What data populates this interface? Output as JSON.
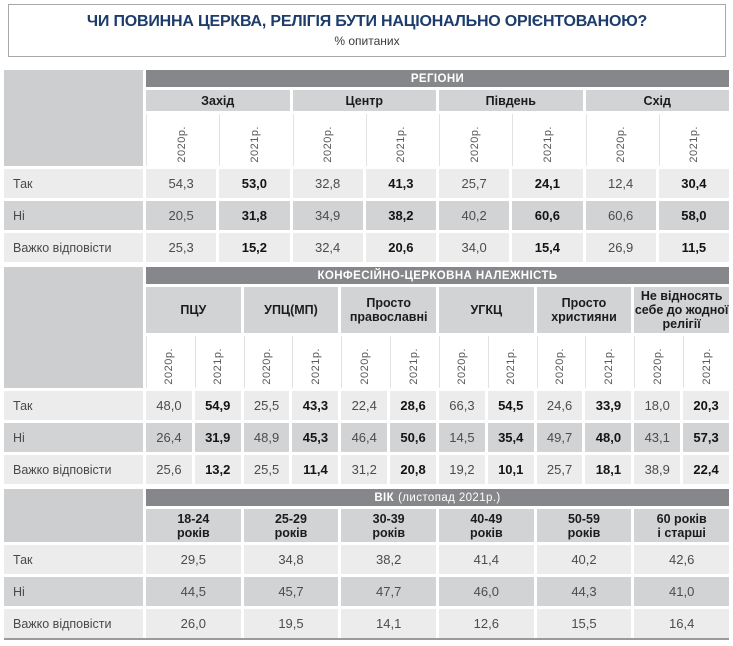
{
  "title": "ЧИ ПОВИННА ЦЕРКВА, РЕЛІГІЯ БУТИ НАЦІОНАЛЬНО ОРІЄНТОВАНОЮ?",
  "subtitle": "% опитаних",
  "colors": {
    "title_text": "#1d3c6b",
    "band_bg": "#85878a",
    "band_text": "#ffffff",
    "group_header_bg": "#d2d3d5",
    "row_light_bg": "#ececed",
    "row_dark_bg": "#d2d3d5",
    "label_header_bg": "#cdced0",
    "bold_value_text": "#141414",
    "value_text": "#4b4c4e"
  },
  "chart_data": [
    {
      "type": "table",
      "section_title": "РЕГІОНИ",
      "section_suffix": "",
      "groups": [
        "Захід",
        "Центр",
        "Південь",
        "Схід"
      ],
      "year_headers": [
        "2020р.",
        "2021р."
      ],
      "rows": [
        {
          "label": "Так",
          "values": [
            "54,3",
            "53,0",
            "32,8",
            "41,3",
            "25,7",
            "24,1",
            "12,4",
            "30,4"
          ]
        },
        {
          "label": "Ні",
          "values": [
            "20,5",
            "31,8",
            "34,9",
            "38,2",
            "40,2",
            "60,6",
            "60,6",
            "58,0"
          ]
        },
        {
          "label": "Важко відповісти",
          "values": [
            "25,3",
            "15,2",
            "32,4",
            "20,6",
            "34,0",
            "15,4",
            "26,9",
            "11,5"
          ]
        }
      ]
    },
    {
      "type": "table",
      "section_title": "КОНФЕСІЙНО-ЦЕРКОВНА НАЛЕЖНІСТЬ",
      "section_suffix": "",
      "groups": [
        "ПЦУ",
        "УПЦ(МП)",
        "Просто\nправославні",
        "УГКЦ",
        "Просто\nхристияни",
        "Не відносять\nсебе до жодної\nрелігії"
      ],
      "year_headers": [
        "2020р.",
        "2021р."
      ],
      "rows": [
        {
          "label": "Так",
          "values": [
            "48,0",
            "54,9",
            "25,5",
            "43,3",
            "22,4",
            "28,6",
            "66,3",
            "54,5",
            "24,6",
            "33,9",
            "18,0",
            "20,3"
          ]
        },
        {
          "label": "Ні",
          "values": [
            "26,4",
            "31,9",
            "48,9",
            "45,3",
            "46,4",
            "50,6",
            "14,5",
            "35,4",
            "49,7",
            "48,0",
            "43,1",
            "57,3"
          ]
        },
        {
          "label": "Важко відповісти",
          "values": [
            "25,6",
            "13,2",
            "25,5",
            "11,4",
            "31,2",
            "20,8",
            "19,2",
            "10,1",
            "25,7",
            "18,1",
            "38,9",
            "22,4"
          ]
        }
      ]
    },
    {
      "type": "table",
      "section_title": "ВІК",
      "section_suffix": "(листопад 2021р.)",
      "groups": [
        "18-24\nроків",
        "25-29\nроків",
        "30-39\nроків",
        "40-49\nроків",
        "50-59\nроків",
        "60 років\nі старші"
      ],
      "year_headers": null,
      "rows": [
        {
          "label": "Так",
          "values": [
            "29,5",
            "34,8",
            "38,2",
            "41,4",
            "40,2",
            "42,6"
          ]
        },
        {
          "label": "Ні",
          "values": [
            "44,5",
            "45,7",
            "47,7",
            "46,0",
            "44,3",
            "41,0"
          ]
        },
        {
          "label": "Важко відповісти",
          "values": [
            "26,0",
            "19,5",
            "14,1",
            "12,6",
            "15,5",
            "16,4"
          ]
        }
      ]
    }
  ]
}
